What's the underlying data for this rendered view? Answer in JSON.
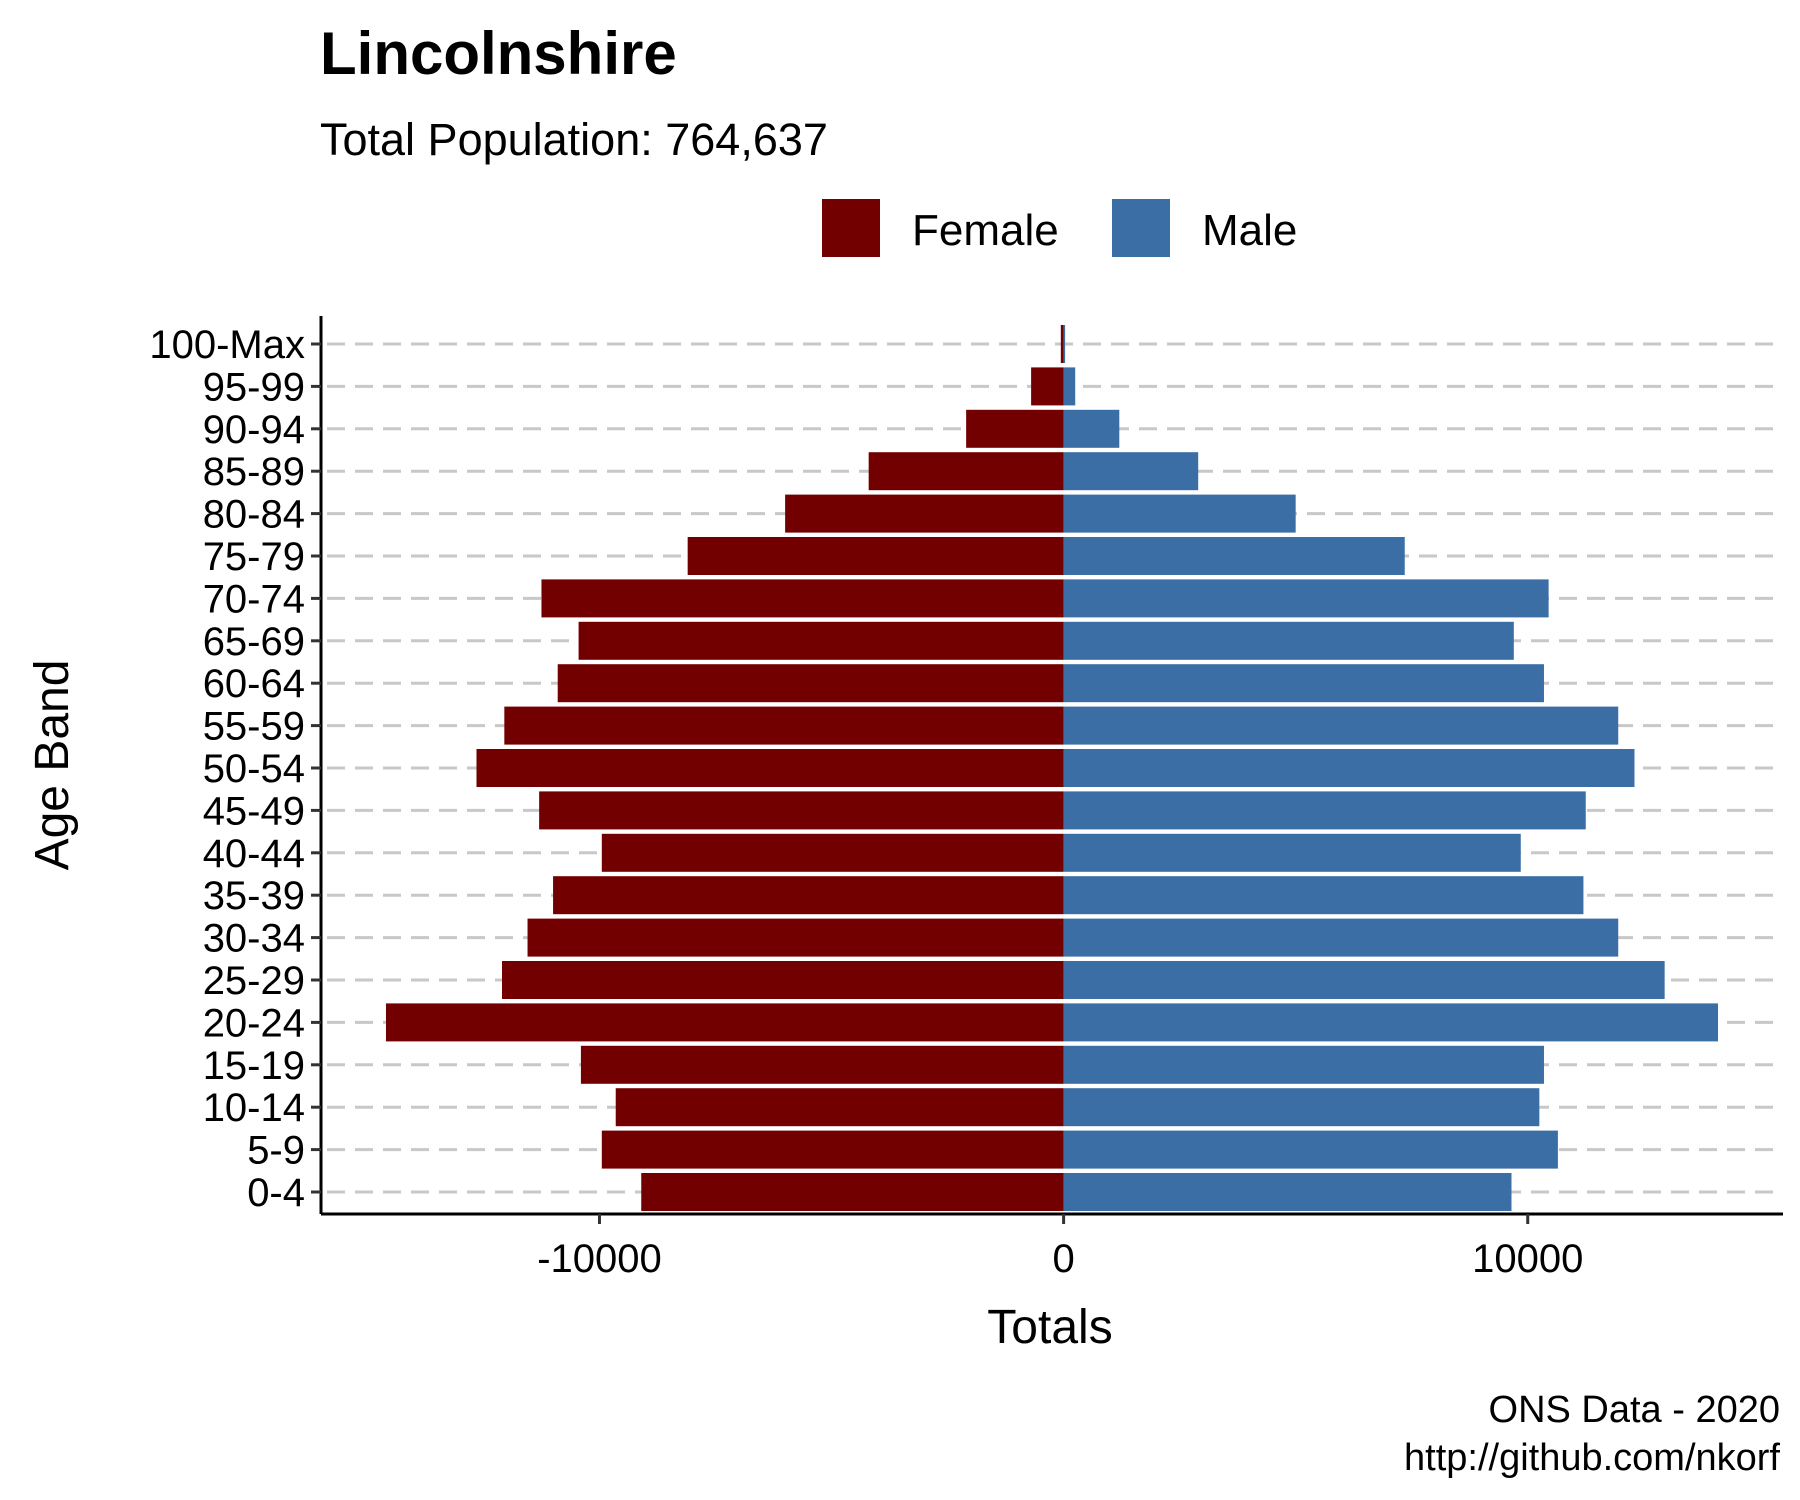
{
  "chart_data": {
    "type": "bar",
    "orientation": "horizontal",
    "title": "Lincolnshire",
    "subtitle": "Total Population:  764,637",
    "xlabel": "Totals",
    "ylabel": "Age Band",
    "xlim": [
      -16000,
      15500
    ],
    "xticks": [
      -10000,
      0,
      10000
    ],
    "xtick_labels": [
      "-10000",
      "0",
      "10000"
    ],
    "grid": "horizontal dashed",
    "legend_position": "top",
    "categories": [
      "0-4",
      "5-9",
      "10-14",
      "15-19",
      "20-24",
      "25-29",
      "30-34",
      "35-39",
      "40-44",
      "45-49",
      "50-54",
      "55-59",
      "60-64",
      "65-69",
      "70-74",
      "75-79",
      "80-84",
      "85-89",
      "90-94",
      "95-99",
      "100-Max"
    ],
    "series": [
      {
        "name": "Female",
        "color": "#730000",
        "values": [
          -9100,
          -9950,
          -9650,
          -10400,
          -14600,
          -12100,
          -11550,
          -11000,
          -9950,
          -11300,
          -12650,
          -12050,
          -10900,
          -10450,
          -11250,
          -8100,
          -6000,
          -4200,
          -2100,
          -700,
          -60
        ]
      },
      {
        "name": "Male",
        "color": "#3a6ea5",
        "values": [
          9650,
          10650,
          10250,
          10350,
          14100,
          12950,
          11950,
          11200,
          9850,
          11250,
          12300,
          11950,
          10350,
          9700,
          10450,
          7350,
          5000,
          2900,
          1200,
          250,
          30
        ]
      }
    ],
    "caption_lines": [
      "ONS Data - 2020",
      "http://github.com/nkorf"
    ]
  }
}
